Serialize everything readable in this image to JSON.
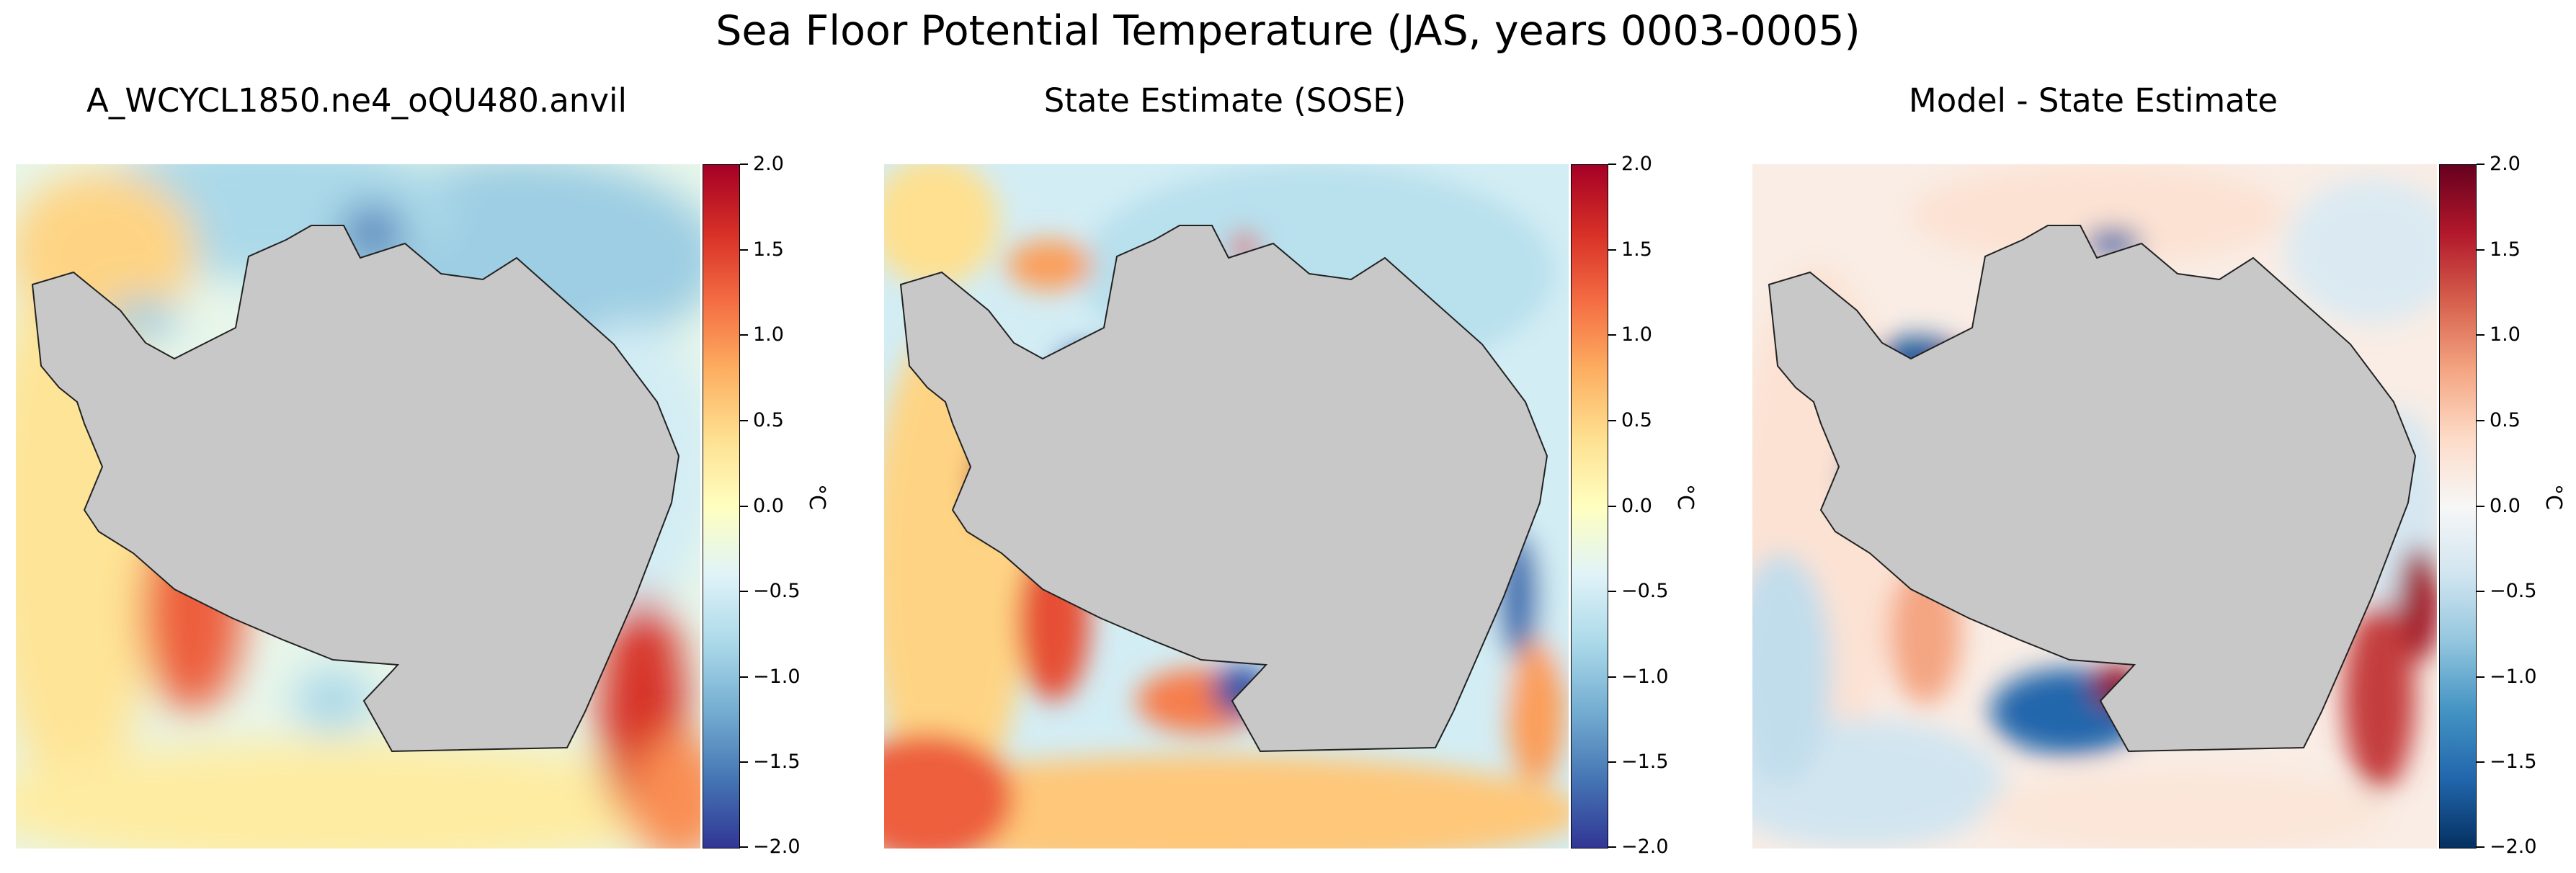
{
  "figure_title": "Sea Floor Potential Temperature (JAS, years 0003-0005)",
  "colors": {
    "land": "#c8c8c8",
    "coast_line": "#222222",
    "rdylbu_r": [
      "#313695",
      "#4575b4",
      "#74add1",
      "#abd9e9",
      "#e0f3f8",
      "#ffffbf",
      "#fee090",
      "#fdae61",
      "#f46d43",
      "#d73027",
      "#a50026"
    ],
    "rdbu_r": [
      "#053061",
      "#2166ac",
      "#4393c3",
      "#92c5de",
      "#d1e5f0",
      "#f7f7f7",
      "#fddbc7",
      "#f4a582",
      "#d6604d",
      "#b2182b",
      "#67001f"
    ]
  },
  "chart_data": [
    {
      "type": "heatmap",
      "title": "A_WCYCL1850.ne4_oQU480.anvil",
      "colormap": "RdYlBu_r",
      "colorbar": {
        "label": "°C",
        "vmin": -2.0,
        "vmax": 2.0,
        "ticks": [
          "2.0",
          "1.5",
          "1.0",
          "0.5",
          "0.0",
          "−0.5",
          "−1.0",
          "−1.5",
          "−2.0"
        ]
      },
      "approx_regional_values_degC": {
        "open_ocean": -0.3,
        "antarctic_shelf": 0.8,
        "east_margin": 1.5,
        "weddell_sector": -1.3
      }
    },
    {
      "type": "heatmap",
      "title": "State Estimate (SOSE)",
      "colormap": "RdYlBu_r",
      "colorbar": {
        "label": "°C",
        "vmin": -2.0,
        "vmax": 2.0,
        "ticks": [
          "2.0",
          "1.5",
          "1.0",
          "0.5",
          "0.0",
          "−0.5",
          "−1.0",
          "−1.5",
          "−2.0"
        ]
      },
      "approx_regional_values_degC": {
        "open_ocean": -0.5,
        "shelf": 0.4,
        "antarctic_peninsula": 1.8,
        "ross_sea": -1.8,
        "weddell_sea": -1.9
      }
    },
    {
      "type": "heatmap",
      "title": "Model - State Estimate",
      "colormap": "RdBu_r",
      "colorbar": {
        "label": "°C",
        "vmin": -2.0,
        "vmax": 2.0,
        "ticks": [
          "2.0",
          "1.5",
          "1.0",
          "0.5",
          "0.0",
          "−0.5",
          "−1.0",
          "−1.5",
          "−2.0"
        ]
      },
      "approx_regional_values_degC": {
        "open_ocean": 0.2,
        "weddell_sea": 1.8,
        "ross_sea": -1.6,
        "east_margin": 1.5
      }
    }
  ]
}
